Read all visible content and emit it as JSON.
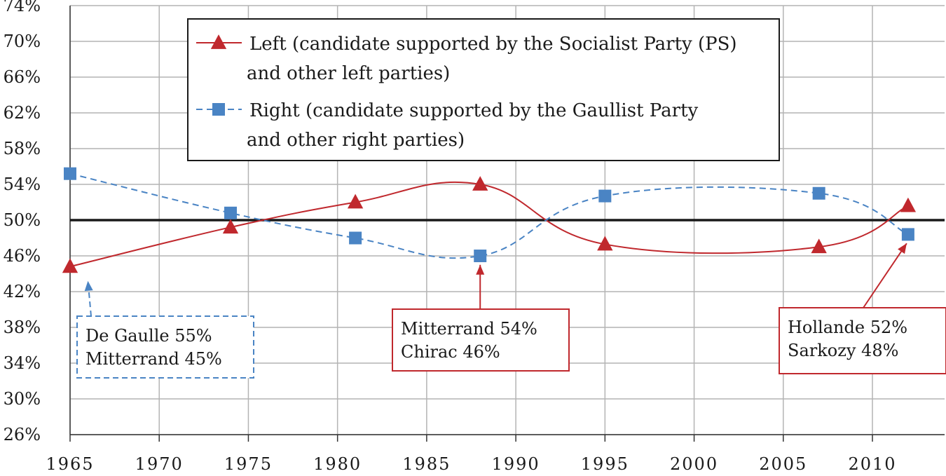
{
  "chart_data": {
    "type": "line",
    "title": "",
    "xlabel": "",
    "ylabel": "",
    "xlim": [
      1965,
      2014
    ],
    "ylim": [
      26,
      74
    ],
    "x_ticks": [
      "1965",
      "1970",
      "1975",
      "1980",
      "1985",
      "1990",
      "1995",
      "2000",
      "2005",
      "2010"
    ],
    "y_ticks": [
      "26%",
      "30%",
      "34%",
      "38%",
      "42%",
      "46%",
      "50%",
      "54%",
      "58%",
      "62%",
      "66%",
      "70%",
      "74%"
    ],
    "grid": true,
    "reference_line": 50,
    "legend_position": "top-center",
    "series": [
      {
        "name": "Left (candidate supported by the Socialist Party (PS) and other left parties)",
        "legend_lines": [
          "Left (candidate supported by the Socialist Party (PS)",
          "and other left parties)"
        ],
        "color": "#c0282d",
        "marker": "triangle",
        "line_style": "solid",
        "x": [
          1965,
          1974,
          1981,
          1988,
          1995,
          2007,
          2012
        ],
        "values": [
          44.8,
          49.2,
          52.0,
          54.0,
          47.3,
          47.0,
          51.6
        ]
      },
      {
        "name": "Right (candidate supported by the Gaullist Party and other right parties)",
        "legend_lines": [
          "Right (candidate supported by the Gaullist Party",
          "and other right parties)"
        ],
        "color": "#4a84c4",
        "marker": "square",
        "line_style": "dashed",
        "x": [
          1965,
          1974,
          1981,
          1988,
          1995,
          2007,
          2012
        ],
        "values": [
          55.2,
          50.8,
          48.0,
          46.0,
          52.7,
          53.0,
          48.4
        ]
      }
    ],
    "annotations": [
      {
        "lines": [
          "De Gaulle 55%",
          "Mitterrand 45%"
        ],
        "color": "#4a84c4",
        "style": "dashed",
        "target_x": 1965,
        "target_value": 44.8
      },
      {
        "lines": [
          "Mitterrand 54%",
          "Chirac 46%"
        ],
        "color": "#c0282d",
        "style": "solid",
        "target_x": 1988,
        "target_value": 46.0
      },
      {
        "lines": [
          "Hollande 52%",
          "Sarkozy 48%"
        ],
        "color": "#c0282d",
        "style": "solid",
        "target_x": 2012,
        "target_value": 48.4
      }
    ]
  }
}
